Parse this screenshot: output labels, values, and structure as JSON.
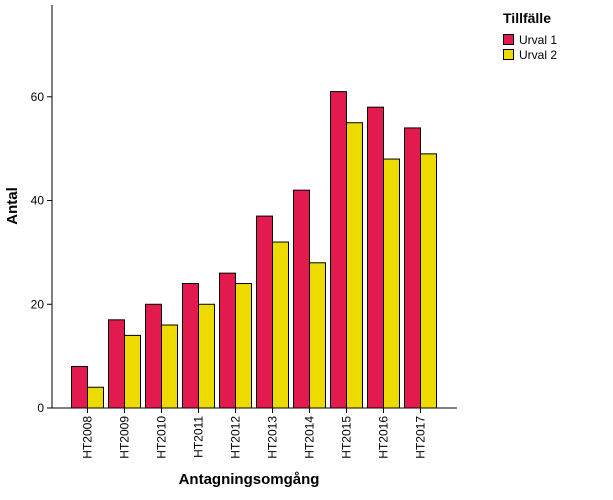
{
  "chart_data": {
    "type": "bar",
    "title": "",
    "xlabel": "Antagningsomgång",
    "ylabel": "Antal",
    "categories": [
      "HT2008",
      "HT2009",
      "HT2010",
      "HT2011",
      "HT2012",
      "HT2013",
      "HT2014",
      "HT2015",
      "HT2016",
      "HT2017"
    ],
    "series": [
      {
        "name": "Urval 1",
        "color": "#e31a4d",
        "values": [
          8,
          17,
          20,
          24,
          26,
          37,
          42,
          61,
          58,
          54
        ]
      },
      {
        "name": "Urval 2",
        "color": "#eddb00",
        "values": [
          4,
          14,
          16,
          20,
          24,
          32,
          28,
          55,
          48,
          49
        ]
      }
    ],
    "yticks": [
      0,
      20,
      40,
      60
    ],
    "ylim": [
      0,
      77.7
    ],
    "grid": false,
    "legend": {
      "title": "Tillfälle",
      "position": "top-right"
    }
  }
}
